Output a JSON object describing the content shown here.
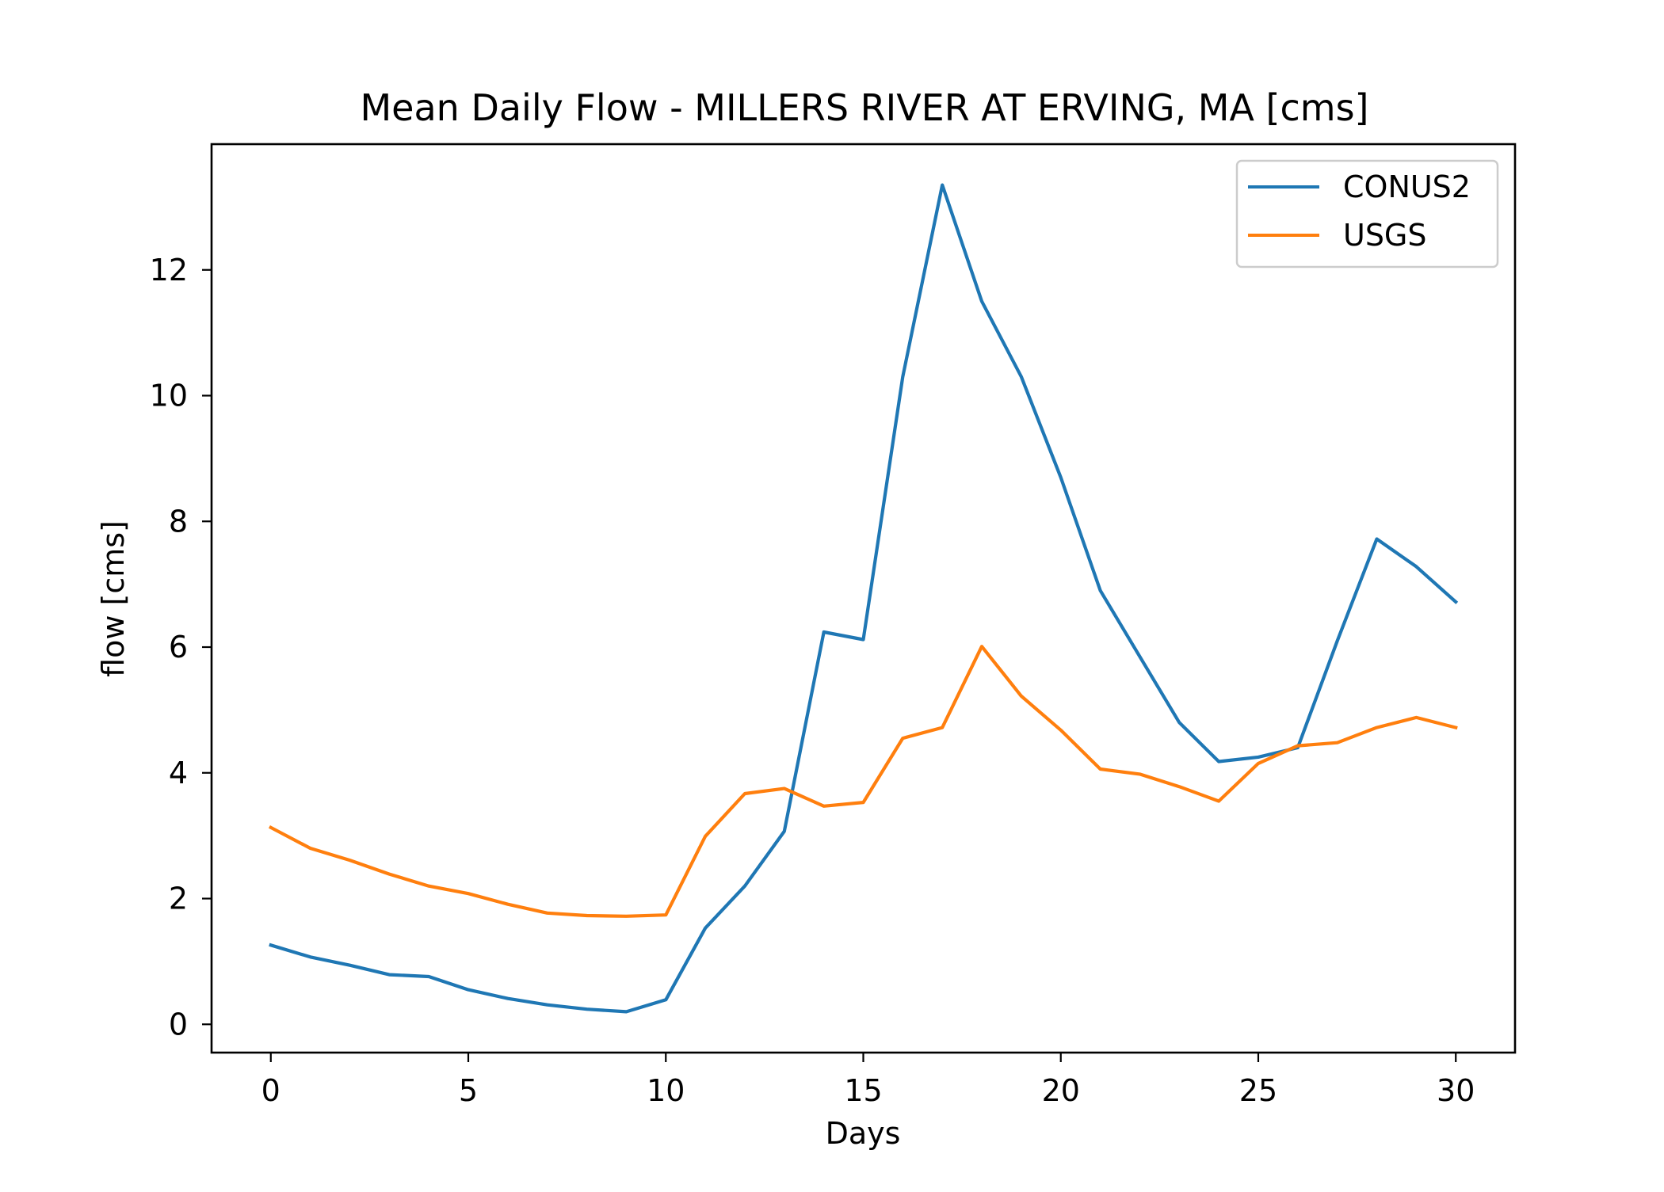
{
  "chart_data": {
    "type": "line",
    "title": "Mean Daily Flow - MILLERS RIVER AT ERVING, MA [cms]",
    "xlabel": "Days",
    "ylabel": "flow [cms]",
    "xlim": [
      -1.5,
      31.5
    ],
    "ylim": [
      -0.45,
      14
    ],
    "xticks": [
      0,
      5,
      10,
      15,
      20,
      25,
      30
    ],
    "yticks": [
      0,
      2,
      4,
      6,
      8,
      10,
      12
    ],
    "grid": false,
    "legend_position": "top-right",
    "x": [
      0,
      1,
      2,
      3,
      4,
      5,
      6,
      7,
      8,
      9,
      10,
      11,
      12,
      13,
      14,
      15,
      16,
      17,
      18,
      19,
      20,
      21,
      22,
      23,
      24,
      25,
      26,
      27,
      28,
      29,
      30
    ],
    "series": [
      {
        "name": "CONUS2",
        "color": "#1f77b4",
        "values": [
          1.26,
          1.07,
          0.94,
          0.79,
          0.76,
          0.55,
          0.41,
          0.31,
          0.24,
          0.2,
          0.39,
          1.53,
          2.2,
          3.07,
          6.24,
          6.12,
          10.3,
          13.35,
          11.5,
          10.3,
          8.7,
          6.9,
          5.85,
          4.8,
          4.18,
          4.25,
          4.4,
          6.1,
          7.72,
          7.28,
          6.72
        ]
      },
      {
        "name": "USGS",
        "color": "#ff7f0e",
        "values": [
          3.13,
          2.8,
          2.61,
          2.39,
          2.2,
          2.08,
          1.91,
          1.77,
          1.73,
          1.72,
          1.74,
          2.99,
          3.67,
          3.75,
          3.47,
          3.53,
          4.55,
          4.72,
          6.01,
          5.22,
          4.68,
          4.06,
          3.98,
          3.78,
          3.55,
          4.15,
          4.43,
          4.48,
          4.72,
          4.88,
          4.72
        ]
      }
    ]
  }
}
